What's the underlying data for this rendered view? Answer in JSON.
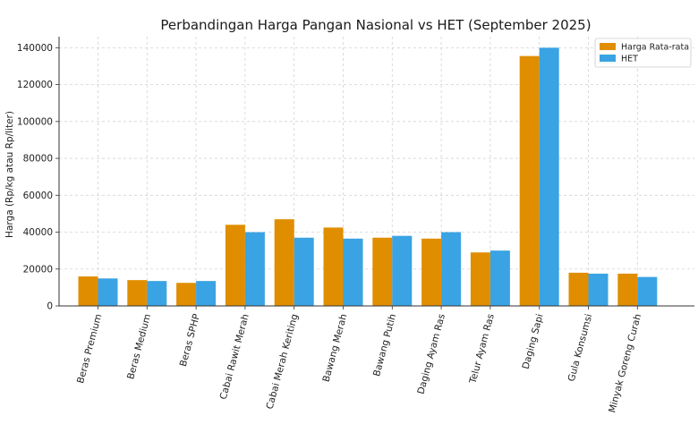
{
  "chart_data": {
    "type": "bar",
    "title": "Perbandingan Harga Pangan Nasional vs HET (September 2025)",
    "xlabel": "",
    "ylabel": "Harga (Rp/kg atau Rp/liter)",
    "ylim": [
      0,
      146000
    ],
    "yticks": [
      0,
      20000,
      40000,
      60000,
      80000,
      100000,
      120000,
      140000
    ],
    "grid": true,
    "legend_position": "top-right",
    "categories": [
      "Beras Premium",
      "Beras Medium",
      "Beras SPHP",
      "Cabai Rawit Merah",
      "Cabai Merah Keriting",
      "Bawang Merah",
      "Bawang Putih",
      "Daging Ayam Ras",
      "Telur Ayam Ras",
      "Daging Sapi",
      "Gula Konsumsi",
      "Minyak Goreng Curah"
    ],
    "series": [
      {
        "name": "Harga Rata-rata",
        "color": "#e08e00",
        "values": [
          16000,
          14000,
          12500,
          44000,
          47000,
          42500,
          37000,
          36500,
          29000,
          135500,
          18000,
          17500
        ]
      },
      {
        "name": "HET",
        "color": "#3aa3e3",
        "values": [
          14900,
          13500,
          13500,
          40000,
          37000,
          36500,
          38000,
          40000,
          30000,
          140000,
          17500,
          15700
        ]
      }
    ]
  }
}
